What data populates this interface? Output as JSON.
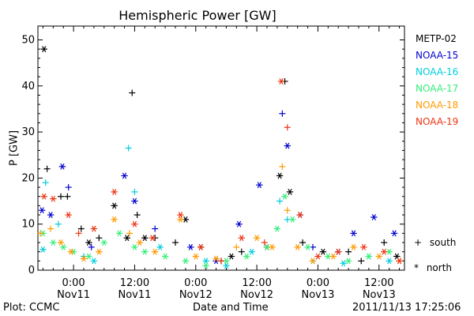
{
  "chart_data": {
    "type": "scatter",
    "title": "Hemispheric Power [GW]",
    "ylabel": "P [GW]",
    "xlabel": "Date and Time",
    "ylim": [
      0,
      53
    ],
    "yticks": [
      0,
      10,
      20,
      30,
      40,
      50
    ],
    "xticks": [
      {
        "hour": 0,
        "time": "0:00",
        "date": "Nov11"
      },
      {
        "hour": 12,
        "time": "12:00",
        "date": "Nov11"
      },
      {
        "hour": 24,
        "time": "0:00",
        "date": "Nov12"
      },
      {
        "hour": 36,
        "time": "12:00",
        "date": "Nov12"
      },
      {
        "hour": 48,
        "time": "0:00",
        "date": "Nov13"
      },
      {
        "hour": 60,
        "time": "12:00",
        "date": "Nov13"
      }
    ],
    "xrange_hours": [
      -7,
      65
    ],
    "footer_left": "Plot: CCMC",
    "footer_right": "2011/11/13 17:25:06",
    "marker_legend": [
      {
        "symbol": "+",
        "label": "south"
      },
      {
        "symbol": "*",
        "label": "north"
      }
    ],
    "series": [
      {
        "name": "METP-02",
        "color": "#000000",
        "points": [
          [
            -5.8,
            48,
            "*"
          ],
          [
            -5.2,
            22,
            "+"
          ],
          [
            -2.5,
            16,
            "+"
          ],
          [
            -1.2,
            16,
            "+"
          ],
          [
            1.5,
            9,
            "+"
          ],
          [
            3,
            6,
            "*"
          ],
          [
            5,
            7,
            "+"
          ],
          [
            8,
            14,
            "*"
          ],
          [
            10.5,
            7,
            "*"
          ],
          [
            11.5,
            38.5,
            "+"
          ],
          [
            12.5,
            12,
            "+"
          ],
          [
            14,
            7,
            "*"
          ],
          [
            16,
            7,
            "+"
          ],
          [
            20,
            6,
            "+"
          ],
          [
            22,
            11,
            "*"
          ],
          [
            25,
            5,
            "*"
          ],
          [
            29,
            2,
            "+"
          ],
          [
            31,
            3,
            "*"
          ],
          [
            33,
            4,
            "+"
          ],
          [
            38,
            5,
            "*"
          ],
          [
            40.5,
            20.5,
            "*"
          ],
          [
            41.5,
            41,
            "+"
          ],
          [
            42.5,
            17,
            "*"
          ],
          [
            45,
            6,
            "+"
          ],
          [
            49,
            4,
            "*"
          ],
          [
            54,
            4,
            "+"
          ],
          [
            56.5,
            2,
            "+"
          ],
          [
            61,
            6,
            "+"
          ],
          [
            63.5,
            3,
            "*"
          ]
        ]
      },
      {
        "name": "NOAA-15",
        "color": "#0000cc",
        "points": [
          [
            -6.2,
            13,
            "*"
          ],
          [
            -4.5,
            12,
            "*"
          ],
          [
            -2.2,
            22.5,
            "*"
          ],
          [
            -1,
            18,
            "+"
          ],
          [
            3.5,
            5,
            "+"
          ],
          [
            10,
            20.5,
            "*"
          ],
          [
            12,
            15,
            "*"
          ],
          [
            16,
            9,
            "+"
          ],
          [
            23,
            5,
            "*"
          ],
          [
            28,
            2,
            "*"
          ],
          [
            32.5,
            10,
            "*"
          ],
          [
            36.5,
            18.5,
            "*"
          ],
          [
            41,
            34,
            "+"
          ],
          [
            42,
            27,
            "*"
          ],
          [
            44.5,
            12,
            "*"
          ],
          [
            47,
            5,
            "+"
          ],
          [
            52,
            4,
            "*"
          ],
          [
            55,
            8,
            "*"
          ],
          [
            59,
            11.5,
            "*"
          ],
          [
            63,
            8,
            "*"
          ]
        ]
      },
      {
        "name": "NOAA-16",
        "color": "#00ccdd",
        "points": [
          [
            -6,
            4.5,
            "*"
          ],
          [
            -5.5,
            19,
            "+"
          ],
          [
            -3,
            10,
            "+"
          ],
          [
            2,
            3,
            "+"
          ],
          [
            4,
            2,
            "*"
          ],
          [
            10.8,
            26.5,
            "+"
          ],
          [
            12,
            17,
            "+"
          ],
          [
            17,
            5,
            "*"
          ],
          [
            26,
            2,
            "*"
          ],
          [
            30,
            1,
            "*"
          ],
          [
            35,
            4,
            "*"
          ],
          [
            40.5,
            15,
            "+"
          ],
          [
            42,
            11,
            "+"
          ],
          [
            47,
            2,
            "*"
          ],
          [
            53,
            1.5,
            "*"
          ],
          [
            58,
            3,
            "*"
          ],
          [
            62,
            2,
            "*"
          ]
        ]
      },
      {
        "name": "NOAA-17",
        "color": "#33ee77",
        "points": [
          [
            -6,
            8,
            "*"
          ],
          [
            -4,
            6,
            "*"
          ],
          [
            -2,
            5,
            "*"
          ],
          [
            0,
            4,
            "*"
          ],
          [
            3,
            3,
            "*"
          ],
          [
            6,
            6,
            "*"
          ],
          [
            9,
            8,
            "*"
          ],
          [
            12,
            5,
            "*"
          ],
          [
            14,
            4,
            "*"
          ],
          [
            18,
            3,
            "*"
          ],
          [
            22,
            2,
            "*"
          ],
          [
            26,
            1,
            "*"
          ],
          [
            30,
            2,
            "*"
          ],
          [
            34,
            3,
            "*"
          ],
          [
            38,
            5,
            "*"
          ],
          [
            40,
            9,
            "*"
          ],
          [
            41.5,
            16,
            "*"
          ],
          [
            43,
            11,
            "*"
          ],
          [
            46,
            5,
            "*"
          ],
          [
            50,
            3,
            "*"
          ],
          [
            54,
            2,
            "*"
          ],
          [
            58,
            3,
            "*"
          ],
          [
            62,
            4,
            "*"
          ]
        ]
      },
      {
        "name": "NOAA-18",
        "color": "#ff9900",
        "points": [
          [
            -6.5,
            8,
            "+"
          ],
          [
            -4.5,
            9,
            "+"
          ],
          [
            -2.5,
            6,
            "*"
          ],
          [
            -0.5,
            4,
            "*"
          ],
          [
            2,
            2.5,
            "*"
          ],
          [
            5,
            4,
            "*"
          ],
          [
            8,
            11,
            "*"
          ],
          [
            11,
            8,
            "+"
          ],
          [
            13,
            6,
            "*"
          ],
          [
            16,
            4,
            "*"
          ],
          [
            21,
            11,
            "*"
          ],
          [
            24,
            3,
            "*"
          ],
          [
            28,
            2.5,
            "*"
          ],
          [
            32,
            5,
            "+"
          ],
          [
            36,
            7,
            "*"
          ],
          [
            39,
            5,
            "*"
          ],
          [
            41,
            22.5,
            "+"
          ],
          [
            42,
            13,
            "+"
          ],
          [
            44,
            5,
            "*"
          ],
          [
            47,
            2,
            "*"
          ],
          [
            51,
            3,
            "*"
          ],
          [
            55,
            5,
            "*"
          ],
          [
            60,
            3,
            "*"
          ],
          [
            64,
            2,
            "*"
          ]
        ]
      },
      {
        "name": "NOAA-19",
        "color": "#ee3311",
        "points": [
          [
            -5.8,
            16,
            "*"
          ],
          [
            -4,
            15.5,
            "*"
          ],
          [
            -1,
            12,
            "*"
          ],
          [
            1,
            8,
            "+"
          ],
          [
            4,
            9,
            "*"
          ],
          [
            8,
            17,
            "*"
          ],
          [
            12,
            10,
            "*"
          ],
          [
            15.5,
            7,
            "*"
          ],
          [
            21,
            12,
            "*"
          ],
          [
            25,
            5,
            "*"
          ],
          [
            29,
            2,
            "+"
          ],
          [
            33,
            7,
            "*"
          ],
          [
            37.5,
            6,
            "+"
          ],
          [
            40.8,
            41,
            "*"
          ],
          [
            42,
            31,
            "+"
          ],
          [
            44.5,
            12,
            "*"
          ],
          [
            48,
            3,
            "*"
          ],
          [
            52,
            4,
            "*"
          ],
          [
            57,
            5,
            "*"
          ],
          [
            61,
            4,
            "*"
          ],
          [
            64,
            2,
            "*"
          ]
        ]
      }
    ]
  }
}
